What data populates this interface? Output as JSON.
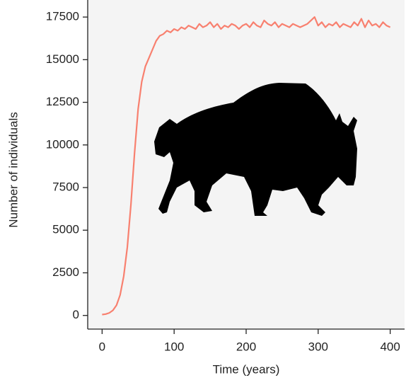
{
  "chart_data": {
    "type": "line",
    "xlabel": "Time (years)",
    "ylabel": "Number of individuals",
    "x": [
      0,
      5,
      10,
      15,
      20,
      25,
      30,
      35,
      40,
      45,
      50,
      55,
      60,
      65,
      70,
      75,
      80,
      85,
      90,
      95,
      100,
      105,
      110,
      115,
      120,
      125,
      130,
      135,
      140,
      145,
      150,
      155,
      160,
      165,
      170,
      175,
      180,
      185,
      190,
      195,
      200,
      205,
      210,
      215,
      220,
      225,
      230,
      235,
      240,
      245,
      250,
      255,
      260,
      265,
      270,
      275,
      280,
      285,
      290,
      295,
      300,
      305,
      310,
      315,
      320,
      325,
      330,
      335,
      340,
      345,
      350,
      355,
      360,
      365,
      370,
      375,
      380,
      385,
      390,
      395,
      400
    ],
    "values": [
      50,
      80,
      150,
      300,
      600,
      1200,
      2300,
      4000,
      6500,
      9500,
      12100,
      13700,
      14600,
      15100,
      15600,
      16100,
      16400,
      16500,
      16700,
      16600,
      16800,
      16700,
      16900,
      16800,
      17000,
      16900,
      16800,
      17100,
      16900,
      17000,
      17200,
      16900,
      17100,
      16800,
      17000,
      16900,
      17100,
      17000,
      16800,
      17000,
      17100,
      16900,
      17200,
      17000,
      16900,
      17300,
      17100,
      17000,
      17200,
      16900,
      17100,
      17000,
      16900,
      17100,
      17000,
      16900,
      17000,
      17100,
      17300,
      17500,
      17000,
      17200,
      16900,
      17100,
      17000,
      17200,
      16900,
      17100,
      17000,
      16900,
      17200,
      17000,
      17400,
      16900,
      17300,
      17000,
      17100,
      16900,
      17200,
      17000,
      16900
    ],
    "color": "#f8806f",
    "xlim": [
      -20,
      420
    ],
    "ylim": [
      -800,
      18500
    ],
    "xticks": [
      0,
      100,
      200,
      300,
      400
    ],
    "yticks": [
      0,
      2500,
      5000,
      7500,
      10000,
      12500,
      15000,
      17500
    ],
    "grid": false
  }
}
